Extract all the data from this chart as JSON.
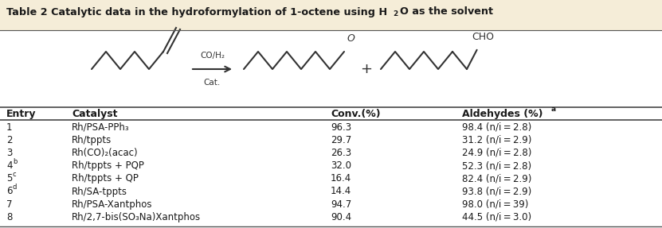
{
  "title_pre": "Table 2 Catalytic data in the hydroformylation of 1-octene using H",
  "title_sub": "2",
  "title_post": "O as the solvent",
  "header": [
    "Entry",
    "Catalyst",
    "Conv.(%)",
    "Aldehydes (%)"
  ],
  "header_sup_col": 3,
  "rows": [
    [
      "1",
      "Rh/PSA-PPh₃",
      "96.3",
      "98.4 (n/i = 2.8)"
    ],
    [
      "2",
      "Rh/tppts",
      "29.7",
      "31.2 (n/i = 2.9)"
    ],
    [
      "3",
      "Rh(CO)₂(acac)",
      "26.3",
      "24.9 (n/i = 2.8)"
    ],
    [
      "4",
      "Rh/tppts + PQP",
      "32.0",
      "52.3 (n/i = 2.8)"
    ],
    [
      "5",
      "Rh/tppts + QP",
      "16.4",
      "82.4 (n/i = 2.9)"
    ],
    [
      "6",
      "Rh/SA-tppts",
      "14.4",
      "93.8 (n/i = 2.9)"
    ],
    [
      "7",
      "Rh/PSA-Xantphos",
      "94.7",
      "98.0 (n/i = 39)"
    ],
    [
      "8",
      "Rh/2,7-bis(SO₃Na)Xantphos",
      "90.4",
      "44.5 (n/i = 3.0)"
    ]
  ],
  "entry_sups": [
    "",
    "",
    "",
    "b",
    "c",
    "d",
    "",
    ""
  ],
  "bg_title": "#f5edd8",
  "bg_white": "#ffffff",
  "text_color": "#1a1a1a",
  "line_color": "#555555"
}
